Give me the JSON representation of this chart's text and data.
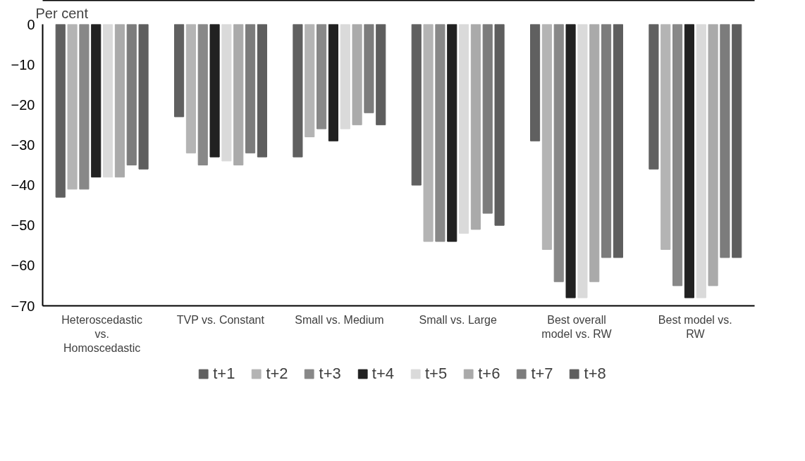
{
  "chart_data": {
    "type": "bar",
    "ylabel": "Per cent",
    "categories": [
      "Heteroscedastic vs. Homoscedastic",
      "TVP vs. Constant",
      "Small vs. Medium",
      "Small vs. Large",
      "Best overall model vs. RW",
      "Best model vs. RW"
    ],
    "ylim": [
      -70,
      0
    ],
    "yticks": [
      -70,
      -60,
      -50,
      -40,
      -30,
      -20,
      -10,
      0
    ],
    "grid": false,
    "legend": "bottom",
    "series": [
      {
        "name": "t+1",
        "color": "#606060",
        "values": [
          -43,
          -23,
          -33,
          -40,
          -29,
          -36
        ]
      },
      {
        "name": "t+2",
        "color": "#b4b4b4",
        "values": [
          -41,
          -32,
          -28,
          -54,
          -56,
          -56
        ]
      },
      {
        "name": "t+3",
        "color": "#888888",
        "values": [
          -41,
          -35,
          -26,
          -54,
          -64,
          -65
        ]
      },
      {
        "name": "t+4",
        "color": "#212121",
        "values": [
          -38,
          -33,
          -29,
          -54,
          -68,
          -68
        ]
      },
      {
        "name": "t+5",
        "color": "#dadada",
        "values": [
          -38,
          -34,
          -26,
          -52,
          -68,
          -68
        ]
      },
      {
        "name": "t+6",
        "color": "#aaaaaa",
        "values": [
          -38,
          -35,
          -25,
          -51,
          -64,
          -65
        ]
      },
      {
        "name": "t+7",
        "color": "#7c7c7c",
        "values": [
          -35,
          -32,
          -22,
          -47,
          -58,
          -58
        ]
      },
      {
        "name": "t+8",
        "color": "#5e5e5e",
        "values": [
          -36,
          -33,
          -25,
          -50,
          -58,
          -58
        ]
      }
    ]
  }
}
